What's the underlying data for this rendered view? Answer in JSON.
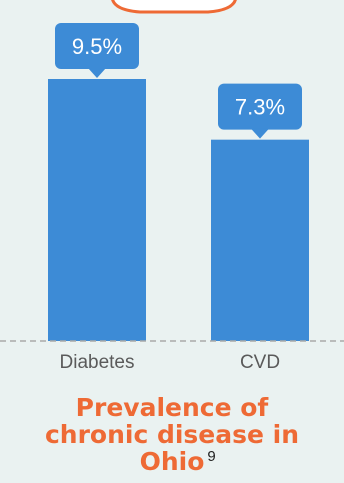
{
  "chart_data": {
    "type": "bar",
    "categories": [
      "Diabetes",
      "CVD"
    ],
    "values": [
      9.5,
      7.3
    ],
    "value_labels": [
      "9.5%",
      "7.3%"
    ],
    "title_lines": [
      "Prevalence of",
      "chronic disease in",
      "Ohio"
    ],
    "title_superscript": "9",
    "xlabel": "",
    "ylabel": "",
    "ylim": [
      0,
      9.5
    ],
    "grid": false,
    "legend": "none",
    "colors": {
      "bar": "#3d8bd6",
      "callout": "#3d8bd6",
      "callout_text": "#ffffff",
      "title": "#ee6a35",
      "baseline": "#a9a9a9",
      "decor_ring": "#ee6a35",
      "background": "#eaf2f1"
    }
  }
}
